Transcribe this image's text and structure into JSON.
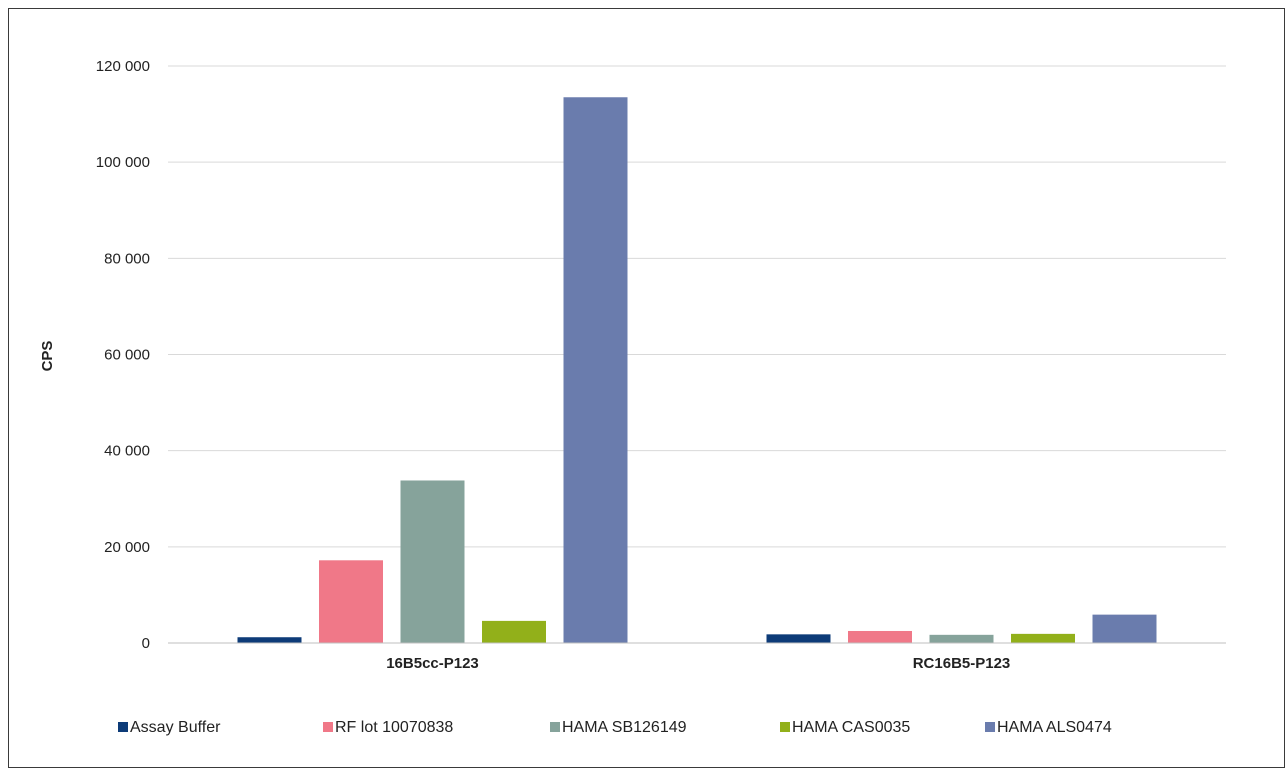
{
  "chart_data": {
    "type": "bar",
    "title": "",
    "xlabel": "",
    "ylabel": "CPS",
    "ylim": [
      0,
      120000
    ],
    "yticks": [
      0,
      20000,
      40000,
      60000,
      80000,
      100000,
      120000
    ],
    "ytick_labels": [
      "0",
      "20 000",
      "40 000",
      "60 000",
      "80 000",
      "100 000",
      "120 000"
    ],
    "categories": [
      "16B5cc-P123",
      "RC16B5-P123"
    ],
    "grid": true,
    "legend_position": "bottom",
    "series": [
      {
        "name": "Assay Buffer",
        "color": "#0d3b78",
        "values": [
          1200,
          1800
        ]
      },
      {
        "name": "RF lot 10070838",
        "color": "#f07888",
        "values": [
          17200,
          2500
        ]
      },
      {
        "name": "HAMA SB126149",
        "color": "#86a39b",
        "values": [
          33800,
          1700
        ]
      },
      {
        "name": "HAMA CAS0035",
        "color": "#92b01a",
        "values": [
          4600,
          1900
        ]
      },
      {
        "name": "HAMA ALS0474",
        "color": "#6a7cad",
        "values": [
          113500,
          5900
        ]
      }
    ]
  }
}
